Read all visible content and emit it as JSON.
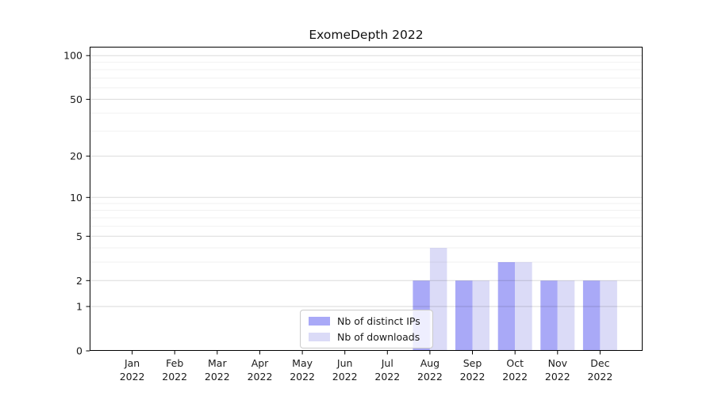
{
  "title": "ExomeDepth 2022",
  "legend": {
    "items": [
      {
        "label": "Nb of distinct IPs",
        "color": "#a9a9f7"
      },
      {
        "label": "Nb of downloads",
        "color": "#dbdbf7"
      }
    ]
  },
  "chart_data": {
    "type": "bar",
    "title": "ExomeDepth 2022",
    "categories": [
      "Jan 2022",
      "Feb 2022",
      "Mar 2022",
      "Apr 2022",
      "May 2022",
      "Jun 2022",
      "Jul 2022",
      "Aug 2022",
      "Sep 2022",
      "Oct 2022",
      "Nov 2022",
      "Dec 2022"
    ],
    "series": [
      {
        "name": "Nb of distinct IPs",
        "color": "#a9a9f7",
        "values": [
          0,
          0,
          0,
          0,
          0,
          0,
          0,
          2,
          2,
          3,
          2,
          2
        ]
      },
      {
        "name": "Nb of downloads",
        "color": "#dbdbf7",
        "values": [
          0,
          0,
          0,
          0,
          0,
          0,
          0,
          4,
          2,
          3,
          2,
          2
        ]
      }
    ],
    "xlabel": "",
    "ylabel": "",
    "yscale": "log1p",
    "ylim": [
      0,
      115
    ],
    "yticks": [
      0,
      1,
      2,
      5,
      10,
      20,
      50,
      100
    ],
    "yticks_minor": [
      3,
      4,
      6,
      7,
      8,
      9,
      30,
      40,
      60,
      70,
      80,
      90
    ],
    "grid": "horizontal-major-and-minor",
    "legend_position": "lower center-right inside plot"
  }
}
